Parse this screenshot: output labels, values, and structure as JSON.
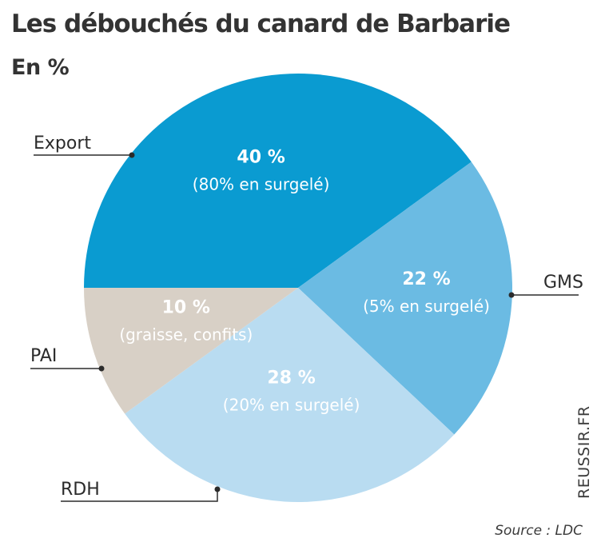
{
  "chart_data": {
    "type": "pie",
    "title": "Les débouchés du canard de Barbarie",
    "subtitle": "En %",
    "slices": [
      {
        "label": "Export",
        "value": 40,
        "value_label": "40 %",
        "detail": "(80% en surgelé)",
        "color": "#0a9bd1",
        "text_color": "#ffffff"
      },
      {
        "label": "GMS",
        "value": 22,
        "value_label": "22 %",
        "detail": "(5% en surgelé)",
        "color": "#6bbbe3",
        "text_color": "#ffffff"
      },
      {
        "label": "RDH",
        "value": 28,
        "value_label": "28 %",
        "detail": "(20% en surgelé)",
        "color": "#b9dcf1",
        "text_color": "#ffffff"
      },
      {
        "label": "PAI",
        "value": 10,
        "value_label": "10 %",
        "detail": "(graisse, confits)",
        "color": "#d8d0c6",
        "text_color": "#ffffff"
      }
    ]
  },
  "brand": "REUSSIR.FR",
  "source": "Source : LDC"
}
